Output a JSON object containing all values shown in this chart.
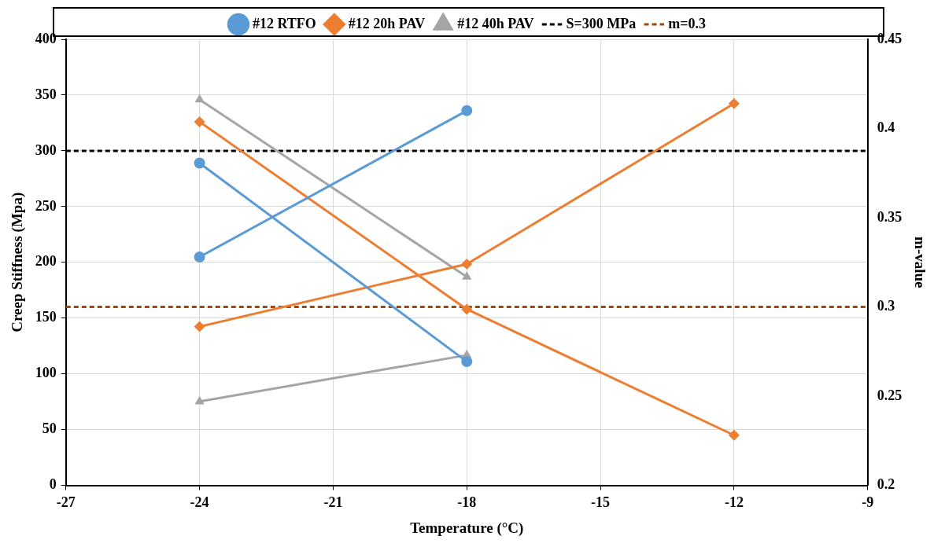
{
  "chart_data": {
    "type": "line",
    "xlabel": "Temperature (°C)",
    "ylabel": "Creep Stiffness (Mpa)",
    "y2label": "m-value",
    "x": [
      -24,
      -18,
      -12
    ],
    "series": [
      {
        "name": "#12 RTFO",
        "color": "#5b9bd5",
        "marker": "circle",
        "values": [
          289,
          111,
          null
        ]
      },
      {
        "color": "#5b9bd5",
        "marker": "circle",
        "axis": "y2",
        "values": [
          0.328,
          0.41,
          null
        ]
      },
      {
        "name": "#12 20h PAV",
        "color": "#ed7d31",
        "marker": "diamond",
        "values": [
          326,
          158,
          45
        ]
      },
      {
        "color": "#ed7d31",
        "marker": "diamond",
        "axis": "y2",
        "values": [
          0.289,
          0.324,
          0.414
        ]
      },
      {
        "name": "#12 40h PAV",
        "color": "#a5a5a5",
        "marker": "triangle",
        "values": [
          346,
          187,
          null
        ]
      },
      {
        "color": "#a5a5a5",
        "marker": "triangle",
        "axis": "y2",
        "values": [
          0.247,
          0.273,
          null
        ]
      }
    ],
    "ref_lines": [
      {
        "axis": "y",
        "value": 300,
        "label": "S=300 MPa",
        "color": "#000000",
        "line_style": "dashed"
      },
      {
        "axis": "y2",
        "value": 0.3,
        "label": "m=0.3",
        "color": "#9e480e",
        "line_style": "dashed"
      }
    ],
    "xlim": [
      -27,
      -9
    ],
    "xticks": [
      -27,
      -24,
      -21,
      -18,
      -15,
      -12,
      -9
    ],
    "ylim": [
      0,
      400
    ],
    "yticks": [
      0,
      50,
      100,
      150,
      200,
      250,
      300,
      350,
      400
    ],
    "y2lim": [
      0.2,
      0.45
    ],
    "y2ticks": [
      0.2,
      0.25,
      0.3,
      0.35,
      0.4,
      0.45
    ],
    "grid": true,
    "legend": "top"
  }
}
